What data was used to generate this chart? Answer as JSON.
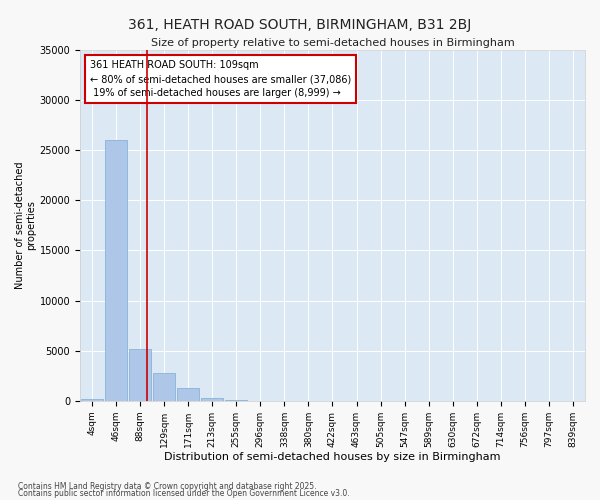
{
  "title": "361, HEATH ROAD SOUTH, BIRMINGHAM, B31 2BJ",
  "subtitle": "Size of property relative to semi-detached houses in Birmingham",
  "xlabel": "Distribution of semi-detached houses by size in Birmingham",
  "ylabel": "Number of semi-detached\nproperties",
  "categories": [
    "4sqm",
    "46sqm",
    "88sqm",
    "129sqm",
    "171sqm",
    "213sqm",
    "255sqm",
    "296sqm",
    "338sqm",
    "380sqm",
    "422sqm",
    "463sqm",
    "505sqm",
    "547sqm",
    "589sqm",
    "630sqm",
    "672sqm",
    "714sqm",
    "756sqm",
    "797sqm",
    "839sqm"
  ],
  "values": [
    200,
    26000,
    5200,
    2800,
    1300,
    300,
    50,
    20,
    10,
    5,
    3,
    2,
    1,
    1,
    0,
    0,
    0,
    0,
    0,
    0,
    0
  ],
  "bar_color": "#aec6e8",
  "bar_edge_color": "#7aadd4",
  "property_line_x": 2.3,
  "annotation_text": "361 HEATH ROAD SOUTH: 109sqm\n← 80% of semi-detached houses are smaller (37,086)\n 19% of semi-detached houses are larger (8,999) →",
  "annotation_box_color": "#ffffff",
  "annotation_box_edge_color": "#cc0000",
  "vline_color": "#cc0000",
  "background_color": "#dce9f5",
  "fig_background": "#f8f8f8",
  "ylim": [
    0,
    35000
  ],
  "yticks": [
    0,
    5000,
    10000,
    15000,
    20000,
    25000,
    30000,
    35000
  ],
  "footer1": "Contains HM Land Registry data © Crown copyright and database right 2025.",
  "footer2": "Contains public sector information licensed under the Open Government Licence v3.0."
}
